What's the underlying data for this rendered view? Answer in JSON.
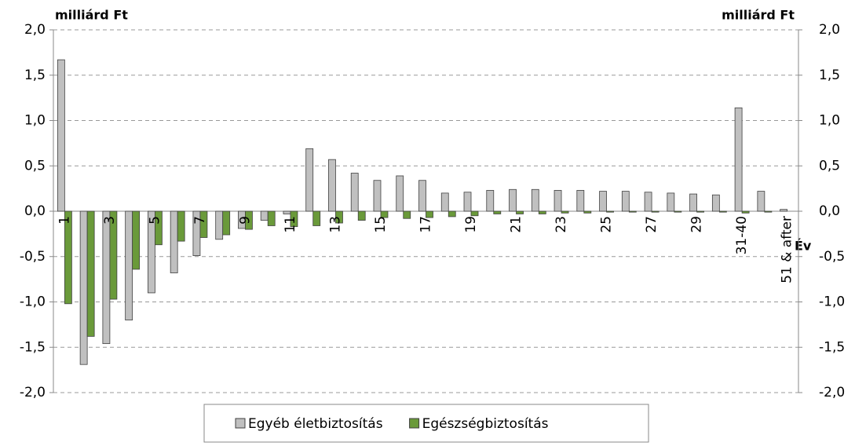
{
  "chart_data": {
    "type": "bar",
    "y_label": "milliárd Ft",
    "y2_label": "milliárd Ft",
    "x_label": "Év",
    "categories": [
      "1",
      null,
      "3",
      null,
      "5",
      null,
      "7",
      null,
      "9",
      null,
      "11",
      null,
      "13",
      null,
      "15",
      null,
      "17",
      null,
      "19",
      null,
      "21",
      null,
      "23",
      null,
      "25",
      null,
      "27",
      null,
      "29",
      null,
      "31-40",
      null,
      "51 & after"
    ],
    "series": [
      {
        "name": "Egyéb életbiztosítás",
        "color": "#c0c0c0",
        "values": [
          1.67,
          -1.69,
          -1.46,
          -1.2,
          -0.9,
          -0.68,
          -0.49,
          -0.31,
          -0.19,
          -0.1,
          -0.03,
          0.69,
          0.57,
          0.42,
          0.34,
          0.39,
          0.34,
          0.2,
          0.21,
          0.23,
          0.24,
          0.24,
          0.23,
          0.23,
          0.22,
          0.22,
          0.21,
          0.2,
          0.19,
          0.18,
          1.14,
          0.22,
          0.02
        ]
      },
      {
        "name": "Egészségbiztosítás",
        "color": "#6a9a3a",
        "values": [
          -1.02,
          -1.38,
          -0.97,
          -0.64,
          -0.37,
          -0.33,
          -0.29,
          -0.26,
          -0.2,
          -0.16,
          -0.17,
          -0.16,
          -0.13,
          -0.1,
          -0.07,
          -0.08,
          -0.07,
          -0.06,
          -0.05,
          -0.03,
          -0.03,
          -0.03,
          -0.02,
          -0.02,
          -0.01,
          -0.01,
          -0.01,
          -0.01,
          -0.01,
          -0.01,
          -0.02,
          -0.01,
          0
        ]
      }
    ],
    "ylim": [
      -2,
      2
    ],
    "yticks": [
      {
        "value": -2,
        "label": "-2,0"
      },
      {
        "value": -1.5,
        "label": "-1,5"
      },
      {
        "value": -1,
        "label": "-1,0"
      },
      {
        "value": -0.5,
        "label": "-0,5"
      },
      {
        "value": 0,
        "label": "0,0"
      },
      {
        "value": 0.5,
        "label": "0,5"
      },
      {
        "value": 1,
        "label": "1,0"
      },
      {
        "value": 1.5,
        "label": "1,5"
      },
      {
        "value": 2,
        "label": "2,0"
      }
    ],
    "y2lim": [
      -2,
      2
    ],
    "y2ticks": [
      {
        "value": -2,
        "label": "-2,0"
      },
      {
        "value": -1.5,
        "label": "-1,5"
      },
      {
        "value": -1,
        "label": "-1,0"
      },
      {
        "value": -0.5,
        "label": "-0,5"
      },
      {
        "value": 0,
        "label": "0,0"
      },
      {
        "value": 0.5,
        "label": "0,5"
      },
      {
        "value": 1,
        "label": "1,0"
      },
      {
        "value": 1.5,
        "label": "1,5"
      },
      {
        "value": 2,
        "label": "2,0"
      }
    ],
    "grid": true
  }
}
